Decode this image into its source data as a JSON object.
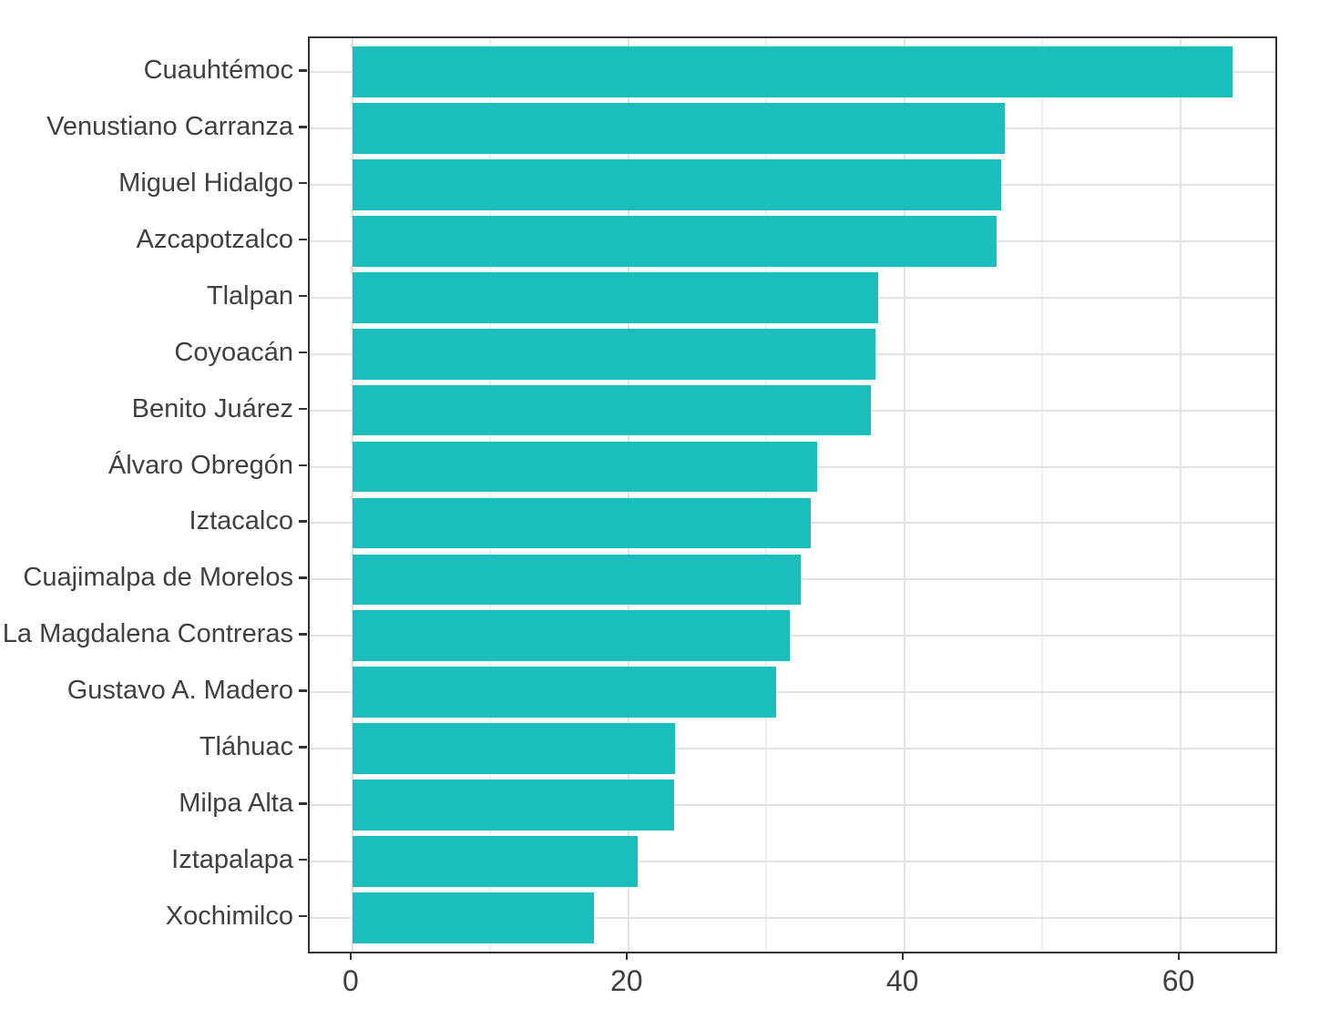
{
  "chart_data": {
    "type": "bar",
    "orientation": "horizontal",
    "title": "",
    "xlabel": "",
    "ylabel": "",
    "categories": [
      "Cuauhtémoc",
      "Venustiano Carranza",
      "Miguel Hidalgo",
      "Azcapotzalco",
      "Tlalpan",
      "Coyoacán",
      "Benito Juárez",
      "Álvaro Obregón",
      "Iztacalco",
      "Cuajimalpa de Morelos",
      "La Magdalena Contreras",
      "Gustavo A. Madero",
      "Tláhuac",
      "Milpa Alta",
      "Iztapalapa",
      "Xochimilco"
    ],
    "values": [
      63.8,
      47.3,
      47.0,
      46.7,
      38.1,
      37.9,
      37.6,
      33.7,
      33.2,
      32.5,
      31.7,
      30.7,
      23.4,
      23.3,
      20.7,
      17.5
    ],
    "x_tick_labels": [
      "0",
      "20",
      "40",
      "60"
    ],
    "x_ticks": [
      0,
      20,
      40,
      60
    ],
    "x_minor_ticks": [
      10,
      30,
      50
    ],
    "xlim": [
      -3.1,
      66.9
    ],
    "grid": true,
    "legend": false,
    "colors": {
      "bar": "#1abebd",
      "panel_border": "#333333",
      "grid_major": "#e2e2e2",
      "grid_minor": "#efefef",
      "tick": "#333333",
      "text": "#404040",
      "background": "#ffffff"
    }
  }
}
